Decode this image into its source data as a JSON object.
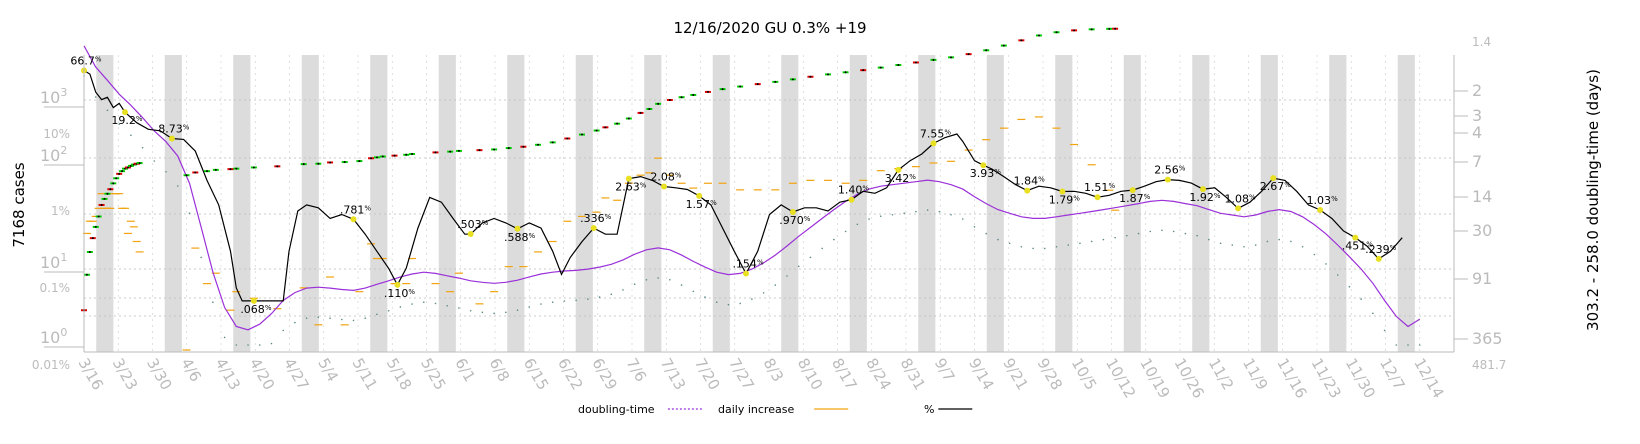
{
  "chart_data": {
    "type": "line",
    "title": "12/16/2020 GU 0.3% +19",
    "ylabel_left": "7168 cases",
    "ylabel_right": "303.2 - 258.0 doubling-time (days)",
    "x_ticks": [
      "3/16",
      "3/23",
      "3/30",
      "4/6",
      "4/13",
      "4/20",
      "4/27",
      "5/4",
      "5/11",
      "5/18",
      "5/25",
      "6/1",
      "6/8",
      "6/15",
      "6/22",
      "6/29",
      "7/6",
      "7/13",
      "7/20",
      "7/27",
      "8/3",
      "8/10",
      "8/17",
      "8/24",
      "8/31",
      "9/7",
      "9/14",
      "9/21",
      "9/28",
      "10/5",
      "10/12",
      "10/19",
      "10/26",
      "11/2",
      "11/9",
      "11/16",
      "11/23",
      "11/30",
      "12/7",
      "12/14"
    ],
    "left_ticks_cases": [
      "10^0",
      "10^1",
      "10^2",
      "10^3"
    ],
    "left_ticks_pct": [
      "0.01%",
      "0.1%",
      "1%",
      "10%"
    ],
    "right_ticks": [
      "1.4",
      "2",
      "3",
      "4",
      "7",
      "14",
      "30",
      "91",
      "365",
      "481.7"
    ],
    "annotations": [
      "66.7",
      "19.2",
      "8.73",
      ".068",
      ".781",
      ".110",
      ".503",
      ".588",
      ".336",
      "2.63",
      "2.08",
      "1.57",
      ".154",
      ".970",
      "1.40",
      "3.42",
      "7.55",
      "3.93",
      "1.84",
      "1.79",
      "1.51",
      "1.87",
      "2.56",
      "1.92",
      "1.08",
      "2.67",
      "1.03",
      ".451",
      ".239"
    ],
    "annotation_unit": "%",
    "legend": [
      "doubling-time",
      "daily increase",
      "%"
    ],
    "legend_position": "bottom",
    "colors": {
      "percent": "#000000",
      "doubling": "#9b30d9",
      "daily": "#f2a30f",
      "cases_up": "#00cc00",
      "cases_down": "#dd0000",
      "marker": "#e8e020",
      "dotted": "#5a8a8a",
      "axis": "#bbbbbb",
      "band": "#dcdcdc"
    },
    "log_scale": true,
    "grid": true,
    "cases_series": [
      [
        0,
        3
      ],
      [
        1,
        8
      ],
      [
        2,
        15
      ],
      [
        3,
        22
      ],
      [
        4,
        30
      ],
      [
        5,
        40
      ],
      [
        6,
        55
      ],
      [
        7,
        65
      ],
      [
        8,
        75
      ],
      [
        9,
        85
      ],
      [
        10,
        100
      ],
      [
        11,
        115
      ],
      [
        12,
        130
      ],
      [
        13,
        140
      ],
      [
        14,
        150
      ],
      [
        15,
        155
      ],
      [
        16,
        162
      ],
      [
        17,
        168
      ],
      [
        18,
        172
      ],
      [
        19,
        175
      ],
      [
        35,
        125
      ],
      [
        38,
        135
      ],
      [
        42,
        140
      ],
      [
        45,
        145
      ],
      [
        50,
        148
      ],
      [
        52,
        150
      ],
      [
        58,
        155
      ],
      [
        66,
        160
      ],
      [
        75,
        170
      ],
      [
        80,
        172
      ],
      [
        84,
        178
      ],
      [
        89,
        180
      ],
      [
        94,
        185
      ],
      [
        98,
        200
      ],
      [
        100,
        205
      ],
      [
        102,
        210
      ],
      [
        106,
        215
      ],
      [
        110,
        220
      ],
      [
        112,
        225
      ],
      [
        120,
        235
      ],
      [
        125,
        240
      ],
      [
        128,
        245
      ],
      [
        135,
        250
      ],
      [
        140,
        255
      ],
      [
        145,
        265
      ],
      [
        150,
        275
      ],
      [
        155,
        290
      ],
      [
        160,
        310
      ],
      [
        165,
        345
      ],
      [
        170,
        385
      ],
      [
        175,
        430
      ],
      [
        178,
        470
      ],
      [
        182,
        520
      ],
      [
        186,
        600
      ],
      [
        190,
        700
      ],
      [
        193,
        780
      ],
      [
        196,
        900
      ],
      [
        200,
        1000
      ],
      [
        204,
        1080
      ],
      [
        208,
        1150
      ],
      [
        213,
        1250
      ],
      [
        218,
        1350
      ],
      [
        224,
        1450
      ],
      [
        230,
        1550
      ],
      [
        236,
        1650
      ],
      [
        242,
        1770
      ],
      [
        248,
        1900
      ],
      [
        254,
        2030
      ],
      [
        260,
        2150
      ],
      [
        266,
        2280
      ],
      [
        272,
        2450
      ],
      [
        278,
        2630
      ],
      [
        284,
        2820
      ],
      [
        290,
        3030
      ],
      [
        296,
        3250
      ],
      [
        302,
        3550
      ],
      [
        308,
        3950
      ],
      [
        314,
        4500
      ],
      [
        320,
        5200
      ],
      [
        326,
        5950
      ],
      [
        332,
        6500
      ],
      [
        338,
        6850
      ],
      [
        344,
        7050
      ],
      [
        350,
        7149
      ],
      [
        352,
        7168
      ]
    ],
    "percent_series": [
      [
        0,
        66.7
      ],
      [
        2,
        60
      ],
      [
        4,
        35
      ],
      [
        6,
        28
      ],
      [
        8,
        30
      ],
      [
        10,
        22
      ],
      [
        12,
        25
      ],
      [
        14,
        19.2
      ],
      [
        18,
        14
      ],
      [
        22,
        11.5
      ],
      [
        26,
        11
      ],
      [
        30,
        8.73
      ],
      [
        34,
        8.5
      ],
      [
        38,
        6
      ],
      [
        42,
        2.5
      ],
      [
        46,
        1.2
      ],
      [
        48,
        0.6
      ],
      [
        50,
        0.3
      ],
      [
        52,
        0.1
      ],
      [
        54,
        0.068
      ],
      [
        58,
        0.068
      ],
      [
        62,
        0.068
      ],
      [
        66,
        0.068
      ],
      [
        68,
        0.068
      ],
      [
        70,
        0.3
      ],
      [
        73,
        1.0
      ],
      [
        76,
        1.2
      ],
      [
        80,
        1.1
      ],
      [
        84,
        0.8
      ],
      [
        88,
        0.9
      ],
      [
        92,
        0.781
      ],
      [
        96,
        0.5
      ],
      [
        100,
        0.3
      ],
      [
        104,
        0.18
      ],
      [
        107,
        0.11
      ],
      [
        110,
        0.18
      ],
      [
        114,
        0.6
      ],
      [
        118,
        1.5
      ],
      [
        122,
        1.3
      ],
      [
        126,
        0.8
      ],
      [
        130,
        0.5
      ],
      [
        132,
        0.503
      ],
      [
        136,
        0.7
      ],
      [
        140,
        0.8
      ],
      [
        144,
        0.7
      ],
      [
        148,
        0.588
      ],
      [
        152,
        0.7
      ],
      [
        156,
        0.6
      ],
      [
        160,
        0.3
      ],
      [
        163,
        0.15
      ],
      [
        166,
        0.25
      ],
      [
        170,
        0.4
      ],
      [
        174,
        0.6
      ],
      [
        178,
        0.5
      ],
      [
        182,
        0.5
      ],
      [
        186,
        2.63
      ],
      [
        190,
        2.8
      ],
      [
        194,
        2.5
      ],
      [
        198,
        2.08
      ],
      [
        202,
        2.0
      ],
      [
        206,
        1.9
      ],
      [
        210,
        1.57
      ],
      [
        214,
        1.2
      ],
      [
        218,
        0.6
      ],
      [
        222,
        0.3
      ],
      [
        226,
        0.154
      ],
      [
        230,
        0.3
      ],
      [
        234,
        0.9
      ],
      [
        238,
        1.2
      ],
      [
        242,
        0.97
      ],
      [
        246,
        1.1
      ],
      [
        250,
        1.1
      ],
      [
        254,
        1.0
      ],
      [
        258,
        1.3
      ],
      [
        262,
        1.4
      ],
      [
        266,
        1.8
      ],
      [
        270,
        1.7
      ],
      [
        274,
        2.0
      ],
      [
        278,
        3.42
      ],
      [
        282,
        4.5
      ],
      [
        286,
        5.5
      ],
      [
        290,
        7.55
      ],
      [
        294,
        9.0
      ],
      [
        298,
        10.0
      ],
      [
        300,
        8.0
      ],
      [
        304,
        4.5
      ],
      [
        307,
        3.93
      ],
      [
        310,
        3.5
      ],
      [
        314,
        2.8
      ],
      [
        318,
        2.2
      ],
      [
        322,
        1.84
      ],
      [
        326,
        2.1
      ],
      [
        330,
        2.0
      ],
      [
        334,
        1.79
      ],
      [
        338,
        1.8
      ],
      [
        342,
        1.7
      ],
      [
        346,
        1.51
      ],
      [
        350,
        1.6
      ],
      [
        354,
        1.8
      ],
      [
        358,
        1.87
      ],
      [
        362,
        2.1
      ],
      [
        366,
        2.4
      ],
      [
        370,
        2.56
      ],
      [
        374,
        2.5
      ],
      [
        378,
        2.3
      ],
      [
        382,
        1.92
      ],
      [
        386,
        2.0
      ],
      [
        390,
        1.5
      ],
      [
        394,
        1.08
      ],
      [
        398,
        1.3
      ],
      [
        402,
        1.8
      ],
      [
        406,
        2.67
      ],
      [
        410,
        2.5
      ],
      [
        414,
        1.8
      ],
      [
        418,
        1.2
      ],
      [
        422,
        1.03
      ],
      [
        426,
        0.8
      ],
      [
        430,
        0.55
      ],
      [
        434,
        0.451
      ],
      [
        438,
        0.35
      ],
      [
        442,
        0.239
      ],
      [
        446,
        0.3
      ],
      [
        450,
        0.45
      ]
    ],
    "doubling_series": [
      [
        0,
        1.5
      ],
      [
        4,
        2.2
      ],
      [
        8,
        2.8
      ],
      [
        12,
        3.6
      ],
      [
        16,
        4.4
      ],
      [
        20,
        5.5
      ],
      [
        24,
        7.0
      ],
      [
        28,
        8.5
      ],
      [
        32,
        11
      ],
      [
        36,
        18
      ],
      [
        40,
        40
      ],
      [
        44,
        90
      ],
      [
        48,
        170
      ],
      [
        52,
        240
      ],
      [
        56,
        255
      ],
      [
        60,
        230
      ],
      [
        64,
        190
      ],
      [
        68,
        150
      ],
      [
        72,
        130
      ],
      [
        76,
        120
      ],
      [
        80,
        118
      ],
      [
        84,
        120
      ],
      [
        88,
        123
      ],
      [
        92,
        125
      ],
      [
        96,
        120
      ],
      [
        100,
        112
      ],
      [
        104,
        105
      ],
      [
        108,
        98
      ],
      [
        112,
        93
      ],
      [
        116,
        90
      ],
      [
        120,
        92
      ],
      [
        124,
        96
      ],
      [
        128,
        100
      ],
      [
        132,
        105
      ],
      [
        136,
        108
      ],
      [
        140,
        110
      ],
      [
        144,
        108
      ],
      [
        148,
        104
      ],
      [
        152,
        98
      ],
      [
        156,
        93
      ],
      [
        160,
        90
      ],
      [
        164,
        88
      ],
      [
        168,
        87
      ],
      [
        172,
        85
      ],
      [
        176,
        82
      ],
      [
        180,
        78
      ],
      [
        184,
        72
      ],
      [
        188,
        65
      ],
      [
        192,
        60
      ],
      [
        196,
        58
      ],
      [
        200,
        60
      ],
      [
        204,
        66
      ],
      [
        208,
        74
      ],
      [
        212,
        82
      ],
      [
        216,
        90
      ],
      [
        220,
        94
      ],
      [
        224,
        92
      ],
      [
        228,
        85
      ],
      [
        232,
        76
      ],
      [
        236,
        66
      ],
      [
        240,
        56
      ],
      [
        244,
        47
      ],
      [
        248,
        40
      ],
      [
        252,
        34
      ],
      [
        256,
        29
      ],
      [
        260,
        25
      ],
      [
        264,
        22
      ],
      [
        268,
        20
      ],
      [
        272,
        19
      ],
      [
        276,
        18.5
      ],
      [
        280,
        18
      ],
      [
        284,
        17.5
      ],
      [
        288,
        17
      ],
      [
        292,
        17.5
      ],
      [
        296,
        18.5
      ],
      [
        300,
        20
      ],
      [
        304,
        23
      ],
      [
        308,
        26
      ],
      [
        312,
        29
      ],
      [
        316,
        31
      ],
      [
        320,
        33
      ],
      [
        324,
        34
      ],
      [
        328,
        34
      ],
      [
        332,
        33
      ],
      [
        336,
        32
      ],
      [
        340,
        31
      ],
      [
        344,
        30
      ],
      [
        348,
        29
      ],
      [
        352,
        28
      ],
      [
        356,
        27
      ],
      [
        360,
        26
      ],
      [
        364,
        25
      ],
      [
        368,
        24.5
      ],
      [
        372,
        25
      ],
      [
        376,
        26
      ],
      [
        380,
        27
      ],
      [
        384,
        29
      ],
      [
        388,
        31
      ],
      [
        392,
        32
      ],
      [
        396,
        33
      ],
      [
        400,
        32
      ],
      [
        404,
        30
      ],
      [
        408,
        29
      ],
      [
        412,
        30
      ],
      [
        416,
        33
      ],
      [
        420,
        38
      ],
      [
        424,
        45
      ],
      [
        428,
        55
      ],
      [
        432,
        68
      ],
      [
        436,
        85
      ],
      [
        440,
        110
      ],
      [
        444,
        150
      ],
      [
        448,
        200
      ],
      [
        452,
        240
      ],
      [
        456,
        210
      ]
    ]
  }
}
